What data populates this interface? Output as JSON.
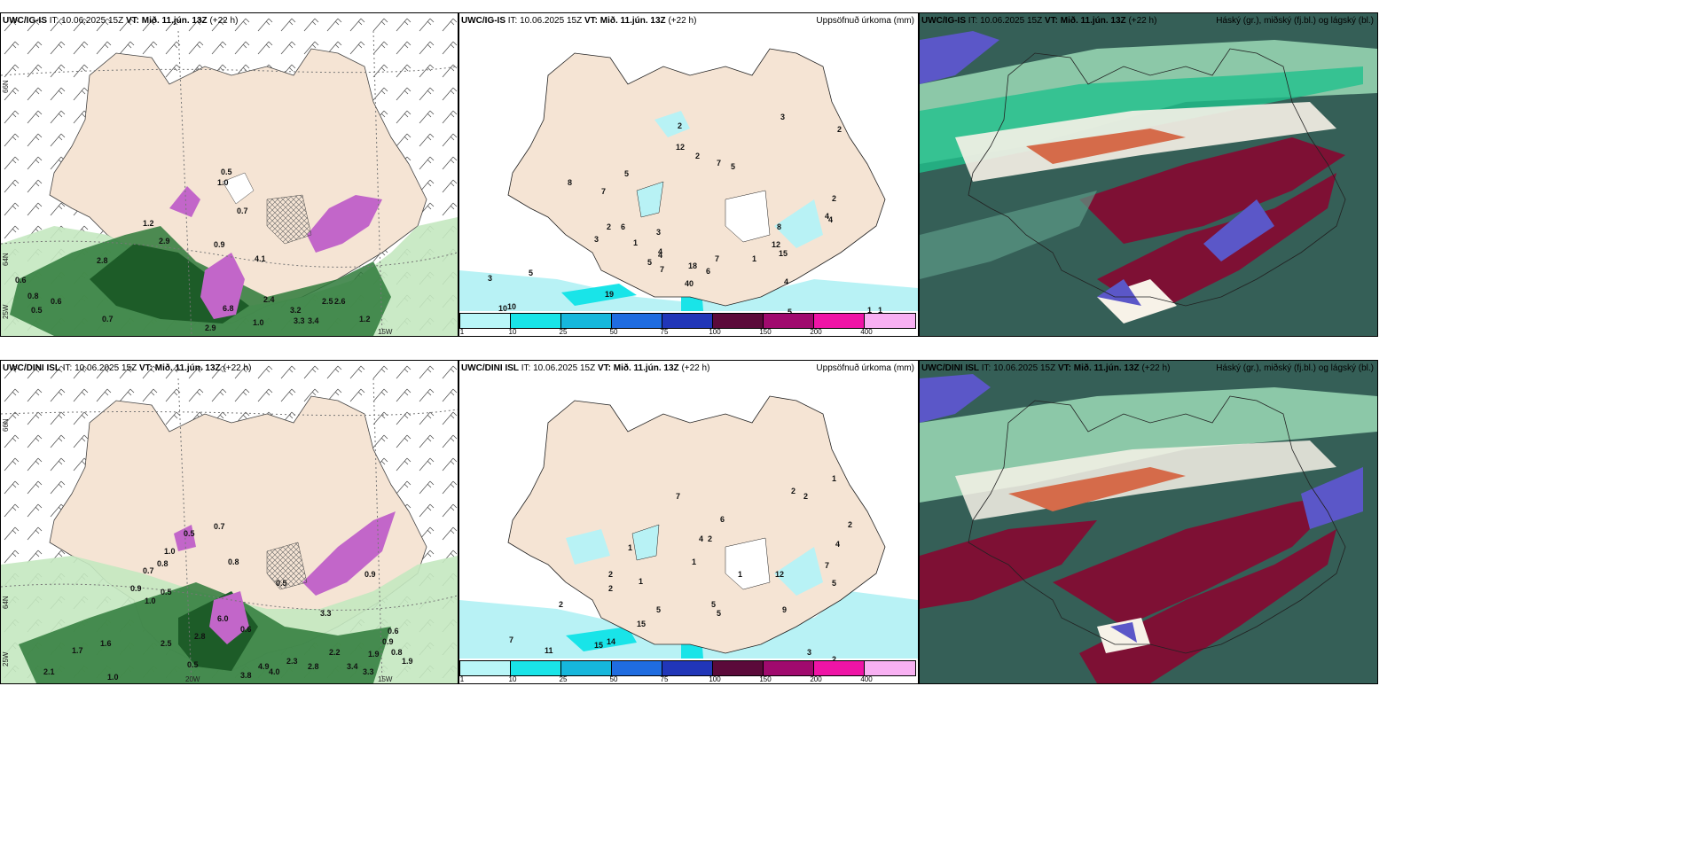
{
  "rows": [
    {
      "model": "UWC/IG-IS",
      "it": "IT: 10.06.2025 15Z",
      "vt": "VT: Mið. 11.jún. 13Z",
      "lead": "(+22 h)"
    },
    {
      "model": "UWC/DINI ISL",
      "it": "IT: 10.06.2025 15Z",
      "vt": "VT: Mið. 11.jún. 13Z",
      "lead": "(+22 h)"
    }
  ],
  "precip_title": "Uppsöfnuð úrkoma (mm)",
  "cloud_title": "Háský (gr.), miðský (fj.bl.) og lágský (bl.)",
  "axes": {
    "lat66": "66N",
    "lat64": "64N",
    "lon15": "15W",
    "lon20": "20W",
    "lon25": "25W"
  },
  "colorbar": {
    "ticks": [
      "1",
      "10",
      "25",
      "50",
      "75",
      "100",
      "150",
      "200",
      "400"
    ],
    "colors": [
      "#b9f6f8",
      "#19e4e8",
      "#16b7dc",
      "#1f6ce0",
      "#2136b8",
      "#5b0a3a",
      "#a00a6e",
      "#ef14a6",
      "#f8b0f2"
    ]
  },
  "colors": {
    "land": "#f5e4d4",
    "sea": "#ffffff",
    "precip_light": "#b8f2f5",
    "wind_green_light": "#c4e8c0",
    "wind_green_dark": "#1d5c28",
    "purple": "#c266c9",
    "cloud_dark": "#355f57",
    "cloud_mid": "#5c9a86",
    "cloud_teal": "#21c08c",
    "cloud_red": "#7e1034"
  },
  "labels": {
    "p1": [
      "0.5",
      "1.0",
      "0.7",
      "0.6",
      "0.8",
      "1.2",
      "2.9",
      "2.8",
      "6.8",
      "2.9",
      "3.3",
      "3.4",
      "2.5",
      "2.6",
      "1.2",
      "1.0",
      "0.7",
      "0.5",
      "0.6",
      "0.9",
      "4.1",
      "2.4",
      "3.2"
    ],
    "p2": [
      "2",
      "3",
      "12",
      "2",
      "7",
      "5",
      "2",
      "5",
      "8",
      "7",
      "2",
      "6",
      "4",
      "1",
      "3",
      "3",
      "5",
      "4",
      "7",
      "18",
      "6",
      "19",
      "40",
      "3",
      "5",
      "10",
      "10",
      "7",
      "4",
      "8",
      "12",
      "15",
      "4",
      "4",
      "2",
      "1",
      "5",
      "1",
      "1"
    ],
    "p4": [
      "0.5",
      "0.7",
      "0.8",
      "1.0",
      "0.8",
      "0.7",
      "1.0",
      "0.9",
      "0.5",
      "6.0",
      "0.6",
      "2.8",
      "1.6",
      "2.5",
      "1.7",
      "2.1",
      "1.0",
      "0.5",
      "3.8",
      "4.0",
      "4.9",
      "2.3",
      "2.8",
      "2.2",
      "3.4",
      "3.3",
      "1.9",
      "1.9",
      "0.9",
      "0.8",
      "0.6",
      "0.5",
      "3.3",
      "0.9"
    ],
    "p5": [
      "7",
      "6",
      "2",
      "2",
      "1",
      "4",
      "2",
      "1",
      "1",
      "2",
      "1",
      "2",
      "5",
      "5",
      "15",
      "11",
      "14",
      "15",
      "7",
      "2",
      "5",
      "9",
      "3",
      "2",
      "1",
      "12",
      "7",
      "5",
      "4",
      "2"
    ]
  }
}
